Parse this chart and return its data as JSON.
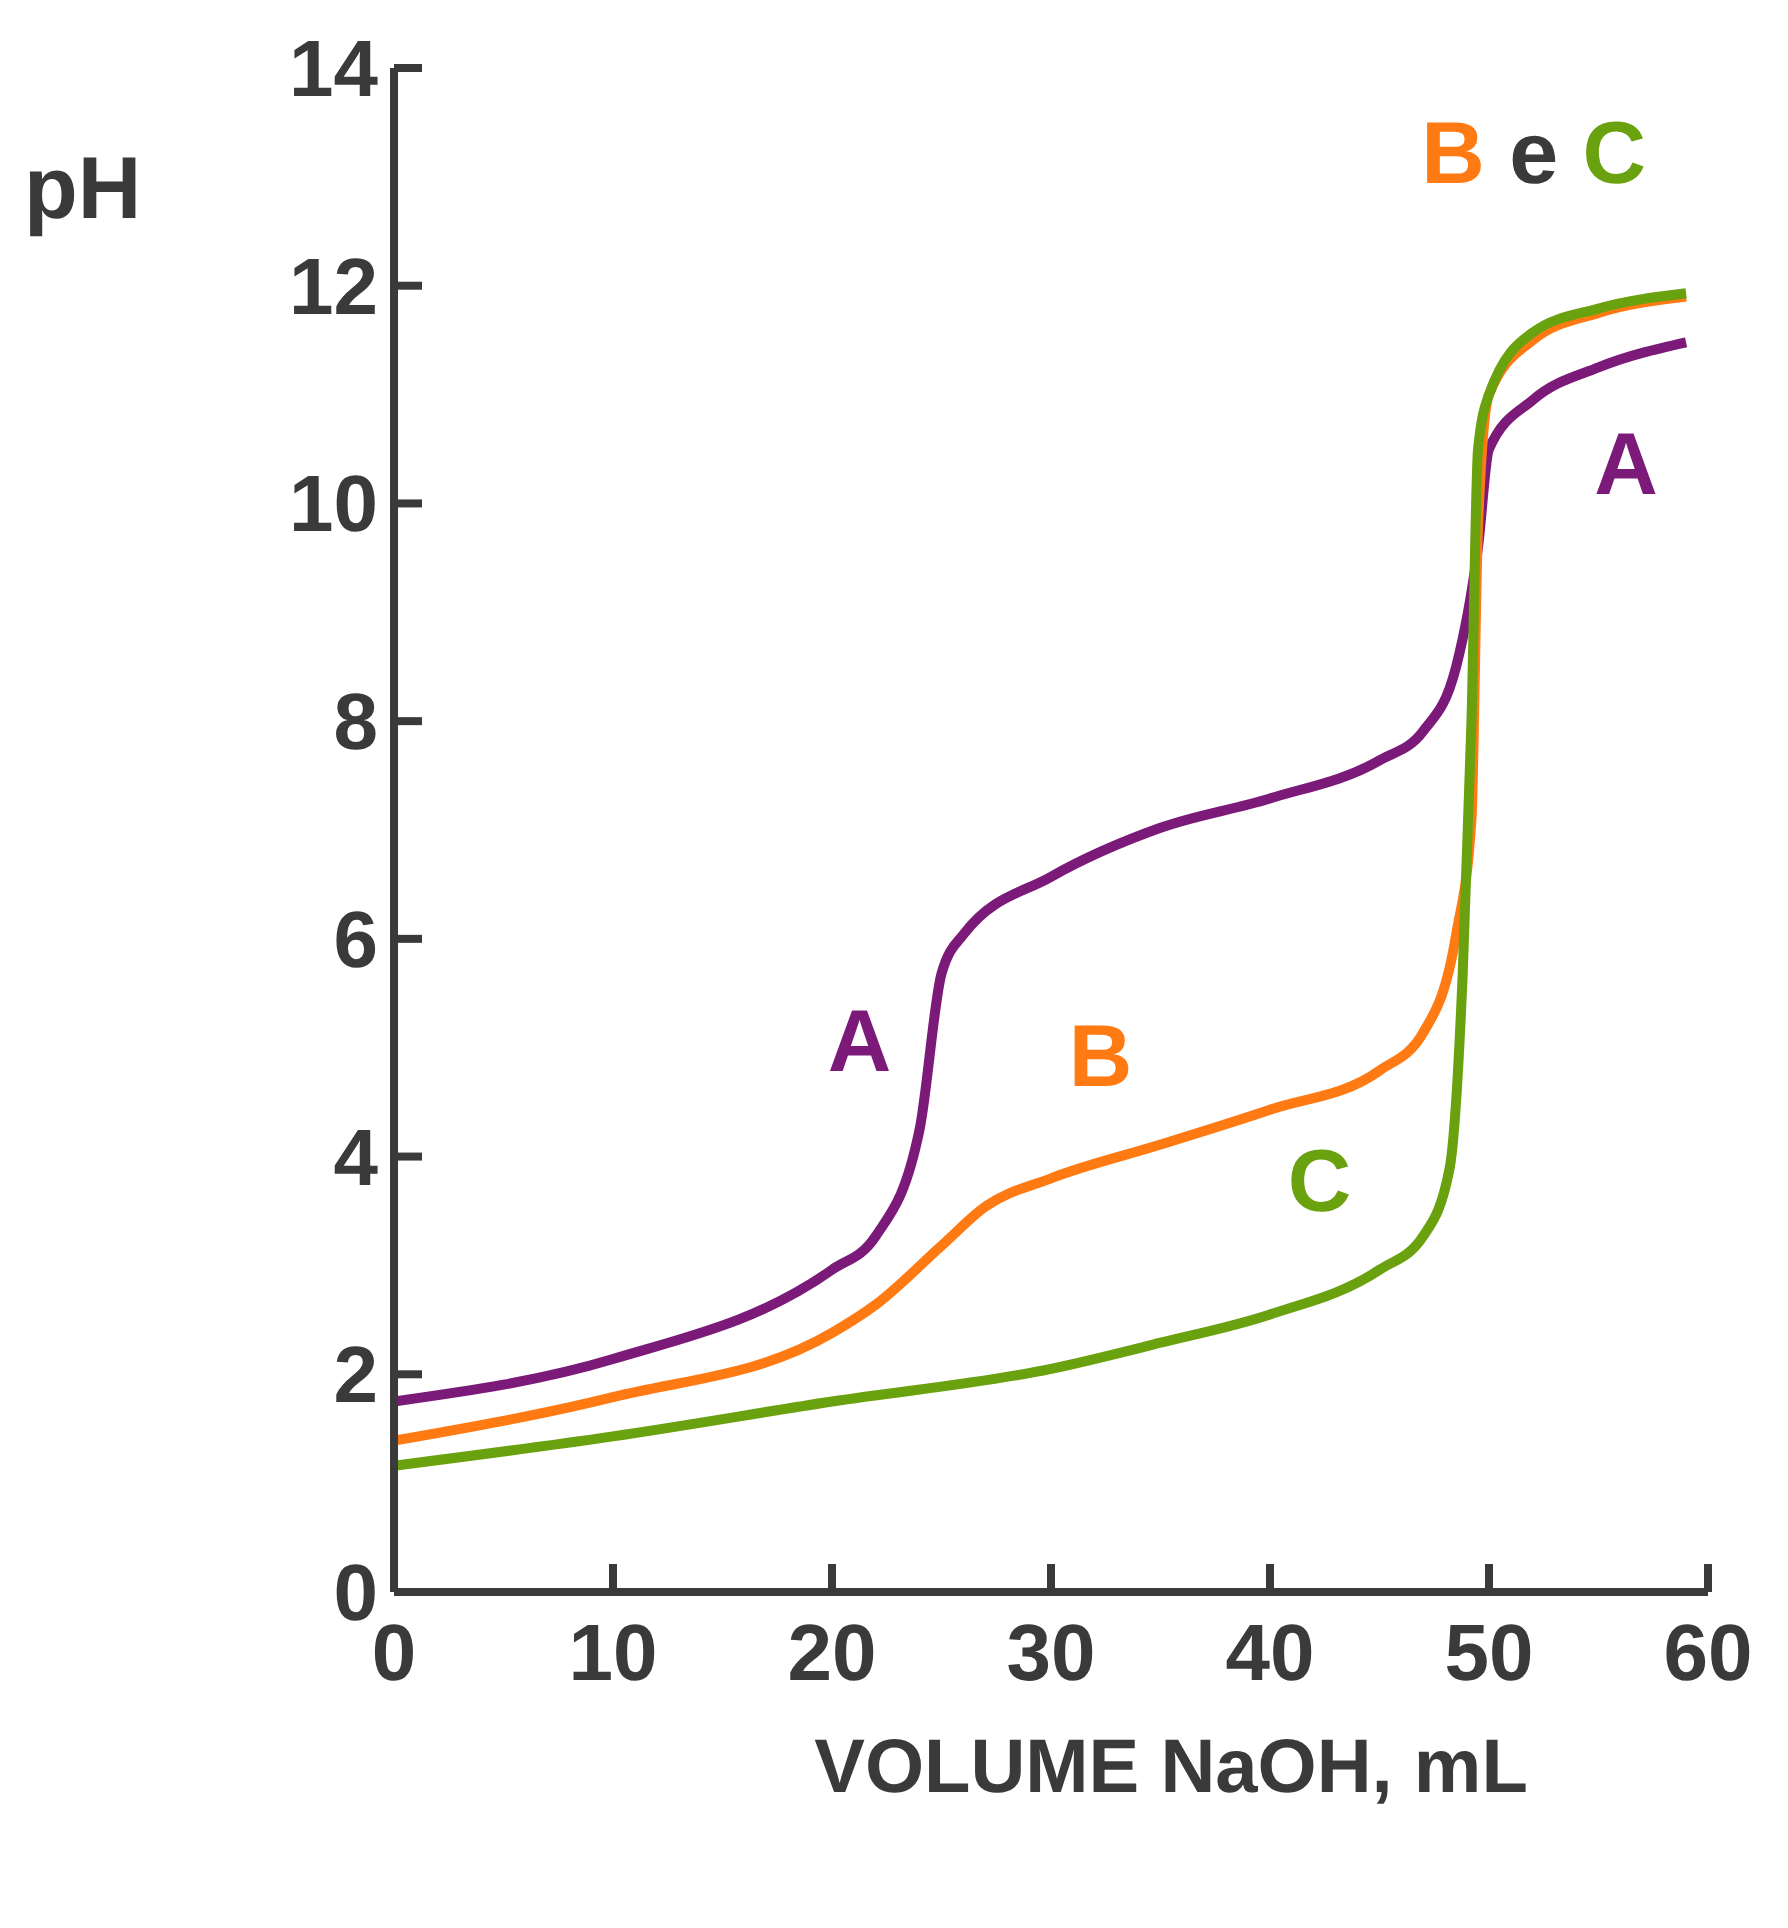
{
  "chart_data": {
    "type": "line",
    "xlabel": "VOLUME NaOH, mL",
    "ylabel": "pH",
    "xlim": [
      0,
      60
    ],
    "xticks": [
      0,
      10,
      20,
      30,
      40,
      50,
      60
    ],
    "ylim": [
      0,
      14
    ],
    "yticks": [
      0,
      2,
      4,
      6,
      8,
      10,
      12,
      14
    ],
    "marker": "none",
    "line_style": "solid",
    "series": [
      {
        "name": "A",
        "color": "#7b1a78",
        "x": [
          0,
          10,
          20,
          22,
          24,
          25,
          26,
          30,
          35,
          40,
          45,
          47,
          48.5,
          49.5,
          50,
          52,
          55,
          59
        ],
        "values": [
          1.75,
          2.14,
          2.96,
          3.27,
          4.25,
          5.68,
          6.04,
          6.57,
          7.02,
          7.29,
          7.64,
          7.91,
          8.5,
          9.6,
          10.5,
          10.95,
          11.25,
          11.48
        ]
      },
      {
        "name": "B",
        "color": "#ff7a12",
        "x": [
          0,
          10,
          20,
          22,
          25,
          27,
          30,
          35,
          40,
          45,
          47,
          48.5,
          49.2,
          49.5,
          50,
          52,
          55,
          59
        ],
        "values": [
          1.39,
          1.79,
          2.38,
          2.64,
          3.18,
          3.54,
          3.8,
          4.11,
          4.43,
          4.79,
          5.14,
          6.04,
          7.1,
          9.8,
          11.0,
          11.5,
          11.75,
          11.9
        ]
      },
      {
        "name": "C",
        "color": "#6aa10f",
        "x": [
          0,
          10,
          20,
          30,
          35,
          40,
          45,
          47,
          48.2,
          48.8,
          49.2,
          49.5,
          50,
          52,
          55,
          59
        ],
        "values": [
          1.16,
          1.43,
          1.75,
          2.05,
          2.29,
          2.55,
          2.96,
          3.27,
          3.89,
          5.68,
          8.0,
          10.5,
          11.0,
          11.57,
          11.79,
          11.93
        ]
      }
    ],
    "annotations": [
      {
        "text": "A",
        "x": 24,
        "y": 4.25
      },
      {
        "text": "B",
        "x": 35,
        "y": 4.11
      },
      {
        "text": "C",
        "x": 45,
        "y": 2.96
      },
      "e"
    ]
  }
}
